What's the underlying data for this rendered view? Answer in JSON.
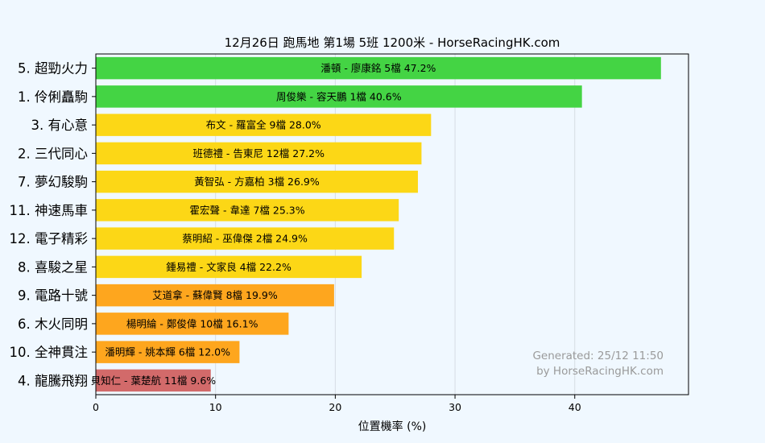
{
  "chart_data": {
    "type": "bar",
    "orientation": "horizontal",
    "title": "12月26日  跑馬地  第1場  5班  1200米 - HorseRacingHK.com",
    "xlabel": "位置機率 (%)",
    "ylabel": "",
    "xlim": [
      0,
      49.5
    ],
    "xticks": [
      0,
      10,
      20,
      30,
      40
    ],
    "grid": true,
    "categories": [
      "5. 超勁火力",
      "1. 伶俐矗駒",
      "3. 有心意",
      "2. 三代同心",
      "7. 夢幻駿駒",
      "11. 神速馬車",
      "12. 電子精彩",
      "8. 喜駿之星",
      "9. 電路十號",
      "6. 木火同明",
      "10. 全神貫注",
      "4. 龍騰飛翔"
    ],
    "values": [
      47.2,
      40.6,
      28.0,
      27.2,
      26.9,
      25.3,
      24.9,
      22.2,
      19.9,
      16.1,
      12.0,
      9.6
    ],
    "bar_labels": [
      "潘頓 - 廖康銘 5檔  47.2%",
      "周俊樂 - 容天鵬 1檔  40.6%",
      "布文 - 羅富全 9檔  28.0%",
      "班德禮 - 告東尼 12檔  27.2%",
      "黃智弘 - 方嘉柏 3檔  26.9%",
      "霍宏聲 - 韋達 7檔  25.3%",
      "蔡明紹 - 巫偉傑 2檔  24.9%",
      "鍾易禮 - 文家良 4檔  22.2%",
      "艾道拿 - 蘇偉賢 8檔  19.9%",
      "楊明綸 - 鄭俊偉 10檔  16.1%",
      "潘明輝 - 姚本輝 6檔  12.0%",
      "貝知仁 - 葉楚航 11檔  9.6%"
    ],
    "colors": [
      "#44d444",
      "#44d444",
      "#fcd716",
      "#fcd716",
      "#fcd716",
      "#fcd716",
      "#fcd716",
      "#fcd716",
      "#fea61e",
      "#fea61e",
      "#fea61e",
      "#d26a6a"
    ]
  },
  "watermark": {
    "line1": "Generated: 25/12 11:50",
    "line2": "by HorseRacingHK.com"
  }
}
